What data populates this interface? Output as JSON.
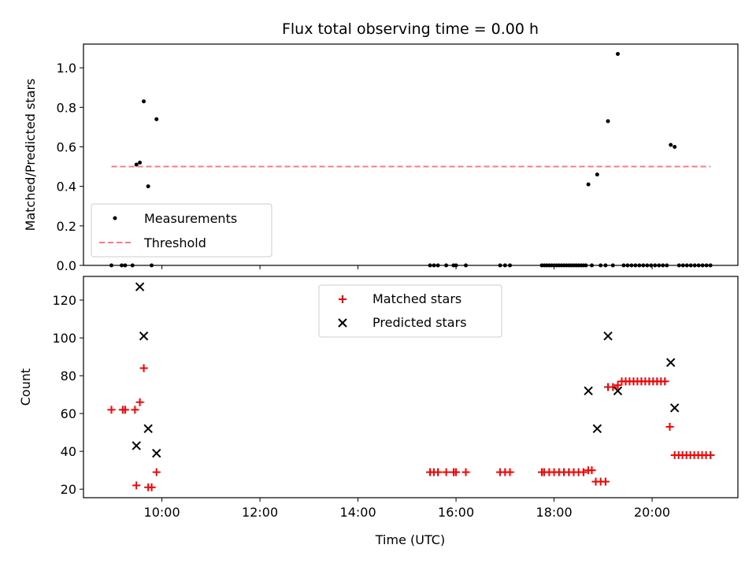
{
  "chart_data": [
    {
      "type": "scatter",
      "title": "Flux total observing time = 0.00 h",
      "xlabel": "",
      "ylabel": "Matched/Predicted stars",
      "xlim": [
        8.4,
        21.75
      ],
      "ylim": [
        0.0,
        1.12
      ],
      "xticks": [
        10,
        12,
        14,
        16,
        18,
        20
      ],
      "xticklabels": [],
      "yticks": [
        0.0,
        0.2,
        0.4,
        0.6,
        0.8,
        1.0
      ],
      "yticklabels": [
        "0.0",
        "0.2",
        "0.4",
        "0.6",
        "0.8",
        "1.0"
      ],
      "legend_position": "lower-left",
      "series": [
        {
          "name": "Measurements",
          "marker": "dot",
          "color": "#000000",
          "points": [
            [
              8.97,
              0.0
            ],
            [
              9.18,
              0.0
            ],
            [
              9.25,
              0.0
            ],
            [
              9.4,
              0.0
            ],
            [
              9.48,
              0.51
            ],
            [
              9.55,
              0.52
            ],
            [
              9.63,
              0.83
            ],
            [
              9.72,
              0.4
            ],
            [
              9.79,
              0.0
            ],
            [
              9.89,
              0.74
            ],
            [
              15.47,
              0.0
            ],
            [
              15.55,
              0.0
            ],
            [
              15.63,
              0.0
            ],
            [
              15.8,
              0.0
            ],
            [
              15.95,
              0.0
            ],
            [
              16.0,
              0.0
            ],
            [
              16.2,
              0.0
            ],
            [
              16.9,
              0.0
            ],
            [
              17.0,
              0.0
            ],
            [
              17.1,
              0.0
            ],
            [
              17.75,
              0.0
            ],
            [
              17.8,
              0.0
            ],
            [
              17.85,
              0.0
            ],
            [
              17.9,
              0.0
            ],
            [
              17.95,
              0.0
            ],
            [
              18.0,
              0.0
            ],
            [
              18.05,
              0.0
            ],
            [
              18.1,
              0.0
            ],
            [
              18.15,
              0.0
            ],
            [
              18.2,
              0.0
            ],
            [
              18.25,
              0.0
            ],
            [
              18.3,
              0.0
            ],
            [
              18.35,
              0.0
            ],
            [
              18.4,
              0.0
            ],
            [
              18.45,
              0.0
            ],
            [
              18.5,
              0.0
            ],
            [
              18.55,
              0.0
            ],
            [
              18.6,
              0.0
            ],
            [
              18.65,
              0.0
            ],
            [
              18.7,
              0.41
            ],
            [
              18.77,
              0.0
            ],
            [
              18.88,
              0.46
            ],
            [
              18.95,
              0.0
            ],
            [
              19.05,
              0.0
            ],
            [
              19.1,
              0.73
            ],
            [
              19.2,
              0.0
            ],
            [
              19.3,
              1.07
            ],
            [
              19.42,
              0.0
            ],
            [
              19.5,
              0.0
            ],
            [
              19.58,
              0.0
            ],
            [
              19.66,
              0.0
            ],
            [
              19.74,
              0.0
            ],
            [
              19.82,
              0.0
            ],
            [
              19.9,
              0.0
            ],
            [
              19.98,
              0.0
            ],
            [
              20.06,
              0.0
            ],
            [
              20.14,
              0.0
            ],
            [
              20.22,
              0.0
            ],
            [
              20.3,
              0.0
            ],
            [
              20.38,
              0.61
            ],
            [
              20.46,
              0.6
            ],
            [
              20.55,
              0.0
            ],
            [
              20.63,
              0.0
            ],
            [
              20.71,
              0.0
            ],
            [
              20.79,
              0.0
            ],
            [
              20.87,
              0.0
            ],
            [
              20.95,
              0.0
            ],
            [
              21.03,
              0.0
            ],
            [
              21.11,
              0.0
            ],
            [
              21.19,
              0.0
            ]
          ]
        },
        {
          "name": "Threshold",
          "marker": "dashed-line",
          "color": "#ff7b7b",
          "points": [
            [
              8.97,
              0.5
            ],
            [
              21.19,
              0.5
            ]
          ]
        }
      ]
    },
    {
      "type": "scatter",
      "title": "",
      "xlabel": "Time (UTC)",
      "ylabel": "Count",
      "xlim": [
        8.4,
        21.75
      ],
      "ylim": [
        15.5,
        132.5
      ],
      "xticks": [
        10,
        12,
        14,
        16,
        18,
        20
      ],
      "xticklabels": [
        "10:00",
        "12:00",
        "14:00",
        "16:00",
        "18:00",
        "20:00"
      ],
      "yticks": [
        20,
        40,
        60,
        80,
        100,
        120
      ],
      "yticklabels": [
        "20",
        "40",
        "60",
        "80",
        "100",
        "120"
      ],
      "legend_position": "upper-center",
      "series": [
        {
          "name": "Matched stars",
          "marker": "plus",
          "color": "#ff0000",
          "points": [
            [
              8.97,
              62
            ],
            [
              9.2,
              62
            ],
            [
              9.25,
              62
            ],
            [
              9.45,
              62
            ],
            [
              9.48,
              22
            ],
            [
              9.55,
              66
            ],
            [
              9.63,
              84
            ],
            [
              9.72,
              21
            ],
            [
              9.79,
              21
            ],
            [
              9.89,
              29
            ],
            [
              15.47,
              29
            ],
            [
              15.55,
              29
            ],
            [
              15.63,
              29
            ],
            [
              15.8,
              29
            ],
            [
              15.95,
              29
            ],
            [
              16.0,
              29
            ],
            [
              16.2,
              29
            ],
            [
              16.9,
              29
            ],
            [
              17.0,
              29
            ],
            [
              17.1,
              29
            ],
            [
              17.75,
              29
            ],
            [
              17.8,
              29
            ],
            [
              17.9,
              29
            ],
            [
              18.0,
              29
            ],
            [
              18.1,
              29
            ],
            [
              18.2,
              29
            ],
            [
              18.3,
              29
            ],
            [
              18.4,
              29
            ],
            [
              18.5,
              29
            ],
            [
              18.6,
              29
            ],
            [
              18.7,
              30
            ],
            [
              18.77,
              30
            ],
            [
              18.85,
              24
            ],
            [
              18.95,
              24
            ],
            [
              19.05,
              24
            ],
            [
              19.1,
              74
            ],
            [
              19.2,
              74
            ],
            [
              19.3,
              75
            ],
            [
              19.38,
              77
            ],
            [
              19.46,
              77
            ],
            [
              19.54,
              77
            ],
            [
              19.62,
              77
            ],
            [
              19.7,
              77
            ],
            [
              19.78,
              77
            ],
            [
              19.86,
              77
            ],
            [
              19.94,
              77
            ],
            [
              20.02,
              77
            ],
            [
              20.1,
              77
            ],
            [
              20.18,
              77
            ],
            [
              20.26,
              77
            ],
            [
              20.36,
              53
            ],
            [
              20.46,
              38
            ],
            [
              20.54,
              38
            ],
            [
              20.62,
              38
            ],
            [
              20.7,
              38
            ],
            [
              20.78,
              38
            ],
            [
              20.86,
              38
            ],
            [
              20.94,
              38
            ],
            [
              21.02,
              38
            ],
            [
              21.1,
              38
            ],
            [
              21.19,
              38
            ]
          ]
        },
        {
          "name": "Predicted stars",
          "marker": "x",
          "color": "#000000",
          "points": [
            [
              9.48,
              43
            ],
            [
              9.55,
              127
            ],
            [
              9.63,
              101
            ],
            [
              9.72,
              52
            ],
            [
              9.89,
              39
            ],
            [
              18.7,
              72
            ],
            [
              18.88,
              52
            ],
            [
              19.1,
              101
            ],
            [
              19.3,
              72
            ],
            [
              20.38,
              87
            ],
            [
              20.46,
              63
            ]
          ]
        }
      ]
    }
  ]
}
